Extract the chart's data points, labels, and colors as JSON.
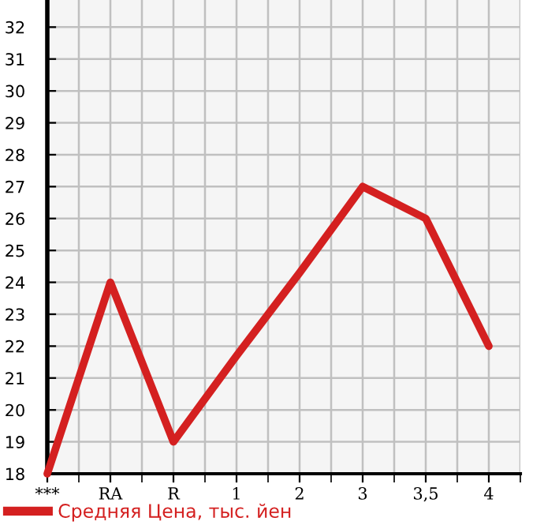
{
  "chart_data": {
    "type": "line",
    "categories": [
      "***",
      "RA",
      "R",
      "1",
      "2",
      "3",
      "3,5",
      "4"
    ],
    "series": [
      {
        "name": "Средняя Цена, тыс. йен",
        "color": "#d42020",
        "values": [
          18,
          24,
          19,
          21.7,
          24.3,
          27,
          26,
          22
        ]
      }
    ],
    "ylim": [
      18,
      32.85
    ],
    "yticks": [
      18,
      19,
      20,
      21,
      22,
      23,
      24,
      25,
      26,
      27,
      28,
      29,
      30,
      31,
      32
    ],
    "grid": true,
    "legend": "bottom left",
    "marker": "none",
    "line_style": "solid"
  }
}
